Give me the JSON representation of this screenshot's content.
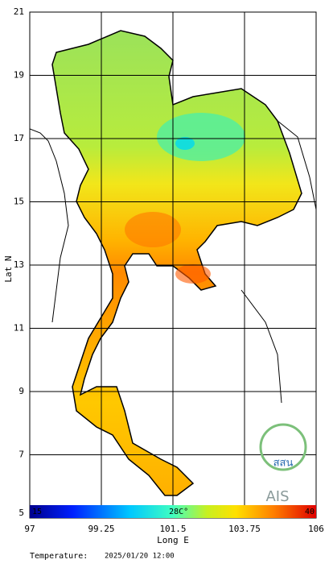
{
  "map": {
    "xlabel": "Long E",
    "ylabel": "Lat N",
    "xlim": [
      97,
      106
    ],
    "ylim": [
      5,
      21
    ],
    "xticks": [
      97,
      99.25,
      101.5,
      103.75,
      106
    ],
    "yticks": [
      5,
      7,
      9,
      11,
      13,
      15,
      17,
      19,
      21
    ]
  },
  "colorbar": {
    "lim": [
      15,
      40
    ],
    "ticks": [
      15,
      {
        "value": 28,
        "label": "28C°"
      },
      40
    ]
  },
  "footer": {
    "label": "Temperature:",
    "time": "2025/01/20 12:00"
  },
  "logos": [
    "สสน",
    "AIS"
  ]
}
